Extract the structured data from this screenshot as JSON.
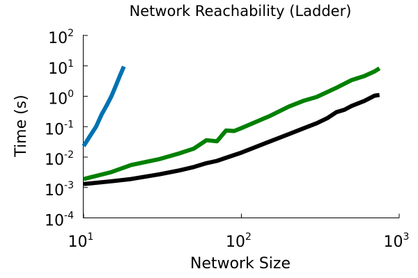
{
  "chart_data": {
    "type": "line",
    "title": "Network Reachability (Ladder)",
    "xlabel": "Network Size",
    "ylabel": "Time (s)",
    "xscale": "log",
    "yscale": "log",
    "xlim": [
      10,
      1000
    ],
    "ylim": [
      0.0001,
      100
    ],
    "grid": false,
    "legend": "none",
    "x_ticks": [
      {
        "base": "10",
        "exp": "1",
        "value": 10
      },
      {
        "base": "10",
        "exp": "2",
        "value": 100
      },
      {
        "base": "10",
        "exp": "3",
        "value": 1000
      }
    ],
    "y_ticks": [
      {
        "base": "10",
        "exp": "-4",
        "value": 0.0001
      },
      {
        "base": "10",
        "exp": "-3",
        "value": 0.001
      },
      {
        "base": "10",
        "exp": "-2",
        "value": 0.01
      },
      {
        "base": "10",
        "exp": "-1",
        "value": 0.1
      },
      {
        "base": "10",
        "exp": "0",
        "value": 1
      },
      {
        "base": "10",
        "exp": "1",
        "value": 10
      },
      {
        "base": "10",
        "exp": "2",
        "value": 100
      }
    ],
    "series": [
      {
        "color": "#0072B2",
        "x": [
          10,
          11,
          12,
          13,
          14,
          15,
          16,
          17,
          18
        ],
        "y": [
          0.023,
          0.05,
          0.1,
          0.25,
          0.5,
          1.0,
          2.2,
          4.8,
          9.5
        ]
      },
      {
        "color": "#008000",
        "x": [
          10,
          15,
          20,
          30,
          40,
          50,
          60,
          70,
          80,
          90,
          100,
          150,
          200,
          250,
          300,
          400,
          500,
          600,
          700,
          750
        ],
        "y": [
          0.0019,
          0.0032,
          0.0055,
          0.0085,
          0.013,
          0.019,
          0.036,
          0.033,
          0.075,
          0.072,
          0.09,
          0.22,
          0.46,
          0.72,
          0.95,
          1.9,
          3.4,
          4.6,
          6.6,
          8.3
        ]
      },
      {
        "color": "#000000",
        "x": [
          10,
          15,
          20,
          30,
          40,
          50,
          60,
          70,
          80,
          100,
          150,
          200,
          250,
          300,
          350,
          400,
          450,
          500,
          600,
          700,
          750
        ],
        "y": [
          0.0013,
          0.0016,
          0.0019,
          0.0027,
          0.0036,
          0.0047,
          0.0063,
          0.0075,
          0.0095,
          0.014,
          0.032,
          0.057,
          0.09,
          0.13,
          0.19,
          0.3,
          0.36,
          0.48,
          0.7,
          1.05,
          1.1
        ]
      }
    ]
  }
}
